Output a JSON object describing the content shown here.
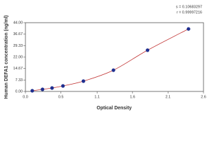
{
  "chart_data": {
    "type": "scatter",
    "xlabel": "Optical Density",
    "ylabel": "Human DEFA1 concentration (ng/ml)",
    "annotations": [
      "s = 0.10683297",
      "r = 0.99997216"
    ],
    "series": [
      {
        "color": "#1f2f8f",
        "line_color": "#c03030",
        "x": [
          0.1,
          0.25,
          0.39,
          0.55,
          0.85,
          1.29,
          1.79,
          2.39
        ],
        "values": [
          0.44,
          1.32,
          2.2,
          3.52,
          6.6,
          13.6,
          26.4,
          40.0
        ]
      }
    ],
    "xlim": [
      0,
      2.61
    ],
    "xticks": [
      {
        "value": 0,
        "label": "0.0"
      },
      {
        "value": 0.52,
        "label": "0.5"
      },
      {
        "value": 1.05,
        "label": "1.1"
      },
      {
        "value": 1.57,
        "label": "1.6"
      },
      {
        "value": 2.09,
        "label": "2.1"
      },
      {
        "value": 2.61,
        "label": "2.6"
      }
    ],
    "ylim": [
      0,
      44
    ],
    "yticks": [
      {
        "value": 0,
        "label": "0.00"
      },
      {
        "value": 7.33,
        "label": "7.33"
      },
      {
        "value": 14.67,
        "label": "14.67"
      },
      {
        "value": 22,
        "label": "22.00"
      },
      {
        "value": 29.33,
        "label": "29.33"
      },
      {
        "value": 36.67,
        "label": "36.67"
      },
      {
        "value": 44,
        "label": "44.00"
      }
    ]
  }
}
